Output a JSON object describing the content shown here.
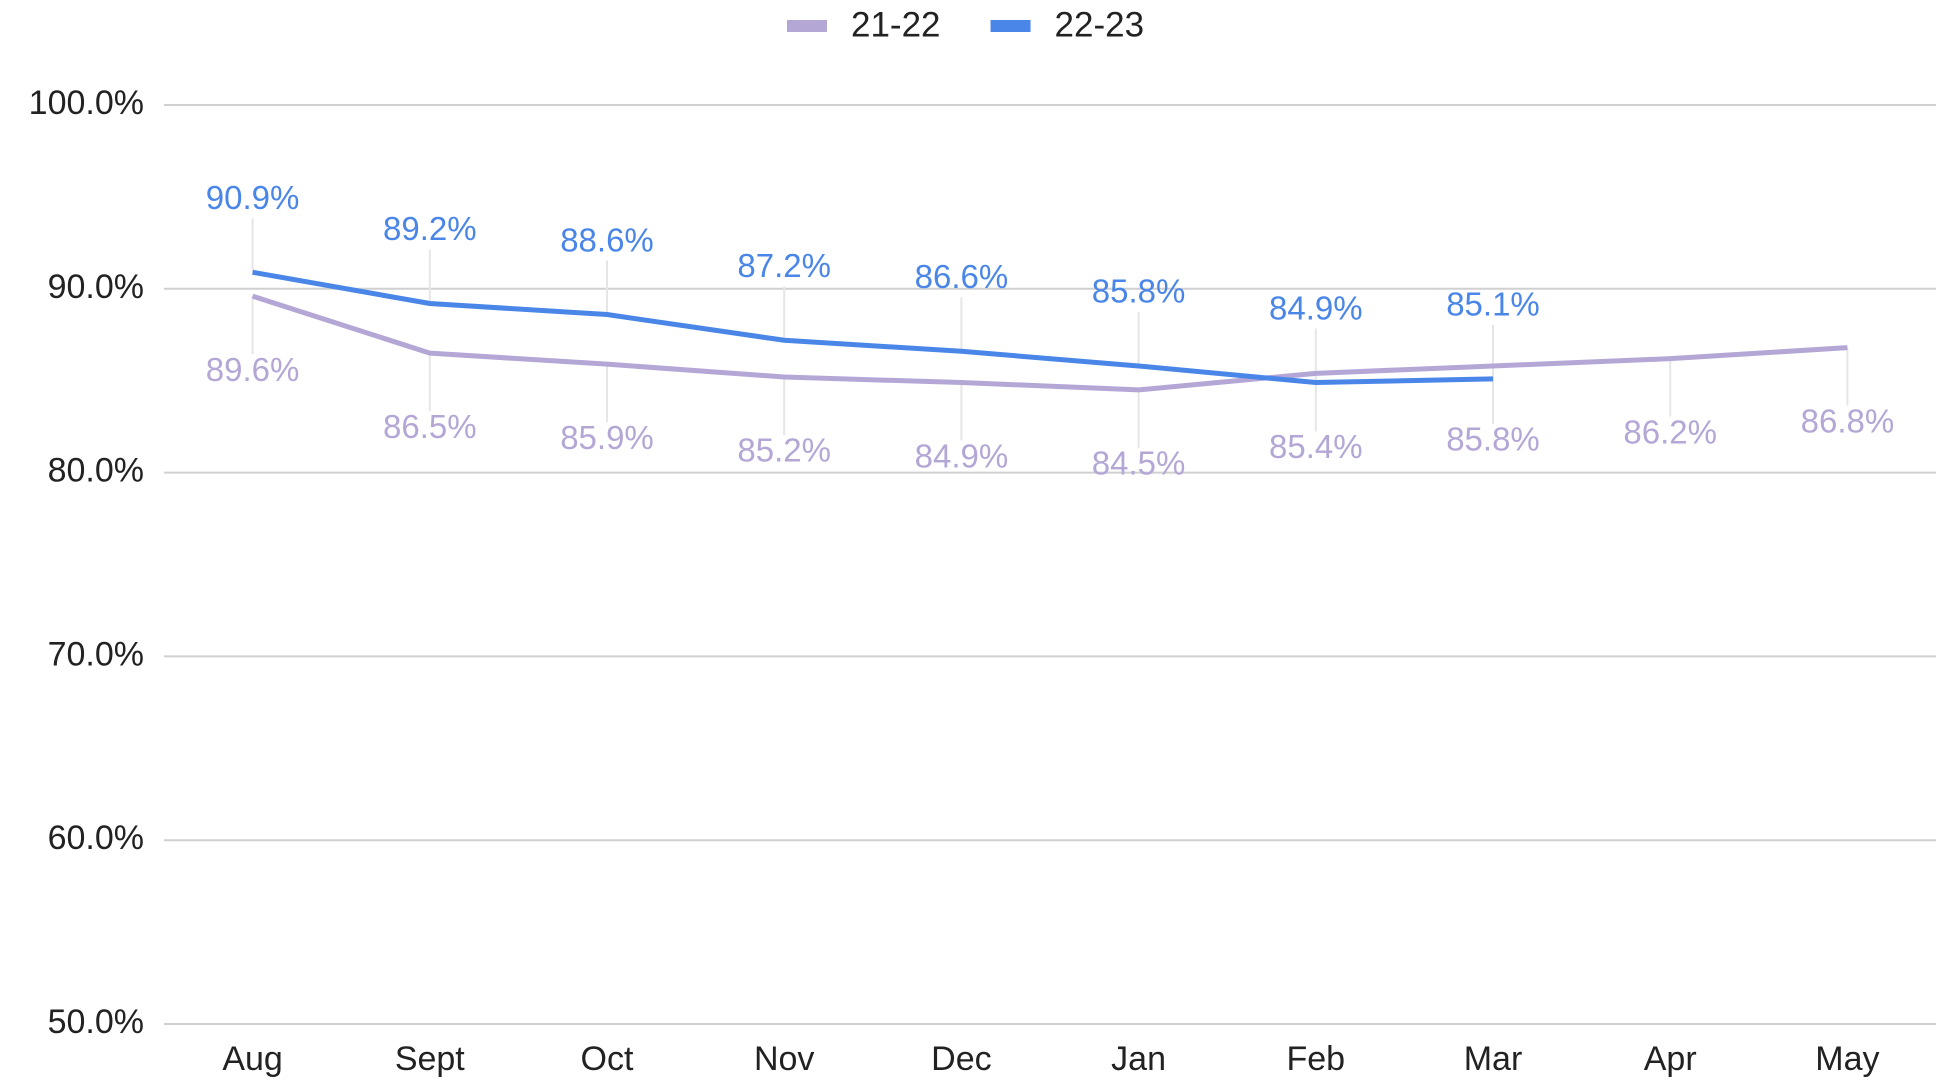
{
  "chart_data": {
    "type": "line",
    "categories": [
      "Aug",
      "Sept",
      "Oct",
      "Nov",
      "Dec",
      "Jan",
      "Feb",
      "Mar",
      "Apr",
      "May"
    ],
    "series": [
      {
        "name": "21-22",
        "color": "#b4a7d6",
        "values": [
          89.6,
          86.5,
          85.9,
          85.2,
          84.9,
          84.5,
          85.4,
          85.8,
          86.2,
          86.8
        ],
        "value_labels": [
          "89.6%",
          "86.5%",
          "85.9%",
          "85.2%",
          "84.9%",
          "84.5%",
          "85.4%",
          "85.8%",
          "86.2%",
          "86.8%"
        ]
      },
      {
        "name": "22-23",
        "color": "#4a86e8",
        "values": [
          90.9,
          89.2,
          88.6,
          87.2,
          86.6,
          85.8,
          84.9,
          85.1,
          null,
          null
        ],
        "value_labels": [
          "90.9%",
          "89.2%",
          "88.6%",
          "87.2%",
          "86.6%",
          "85.8%",
          "84.9%",
          "85.1%",
          null,
          null
        ]
      }
    ],
    "ylim": [
      50,
      100
    ],
    "yticks": [
      {
        "value": 50,
        "label": "50.0%"
      },
      {
        "value": 60,
        "label": "60.0%"
      },
      {
        "value": 70,
        "label": "70.0%"
      },
      {
        "value": 80,
        "label": "80.0%"
      },
      {
        "value": 90,
        "label": "90.0%"
      },
      {
        "value": 100,
        "label": "100.0%"
      }
    ],
    "grid": true,
    "legend": "top"
  }
}
